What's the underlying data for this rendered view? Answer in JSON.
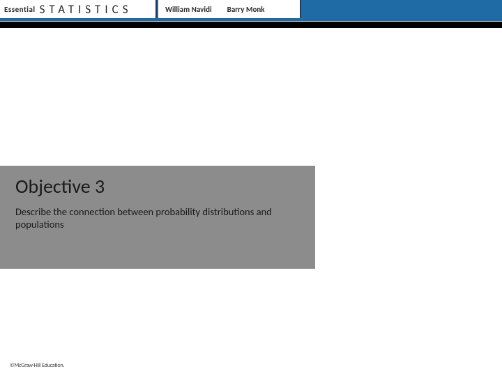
{
  "header": {
    "logo_prefix": "Essential",
    "logo_title": "STATISTICS",
    "author1": "William Navidi",
    "author2": "Barry Monk",
    "bar_color": "#1f6ba6",
    "underline_color": "#000000"
  },
  "objective": {
    "title": "Objective 3",
    "description": "Describe the connection between probability distributions and populations",
    "box_color": "#8c8c8c",
    "title_fontsize": 28,
    "desc_fontsize": 14.5
  },
  "footer": {
    "copyright": "©McGraw-Hill Education."
  }
}
